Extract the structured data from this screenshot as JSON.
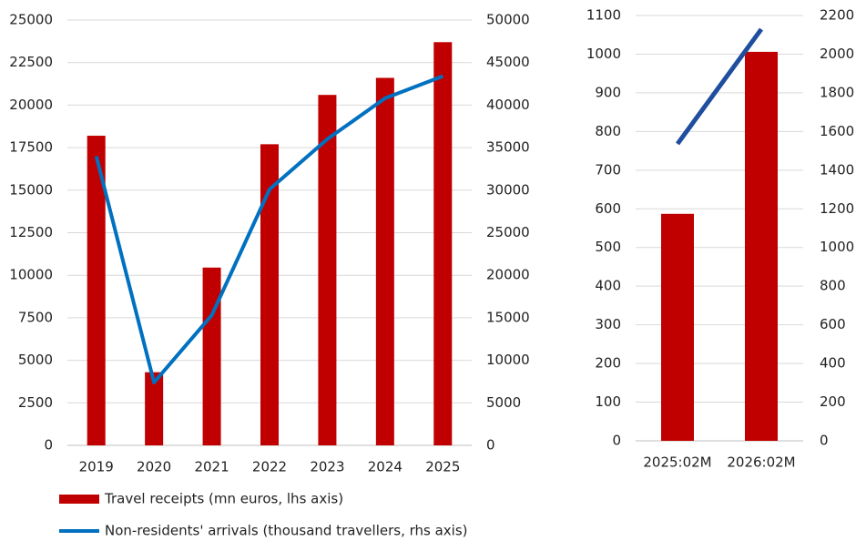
{
  "chart_data": [
    {
      "type": "bar_line",
      "categories": [
        "2019",
        "2020",
        "2021",
        "2022",
        "2023",
        "2024",
        "2025"
      ],
      "series": [
        {
          "name": "Travel receipts (mn euros, lhs axis)",
          "type": "bar",
          "color": "#c00000",
          "values": [
            18200,
            4300,
            10450,
            17700,
            20600,
            21600,
            23700
          ]
        },
        {
          "name": "Non-residents' arrivals (thousand travellers, rhs axis)",
          "type": "line",
          "axis": "y2",
          "color": "#0070c0",
          "values": [
            34000,
            7400,
            15300,
            30100,
            36000,
            40800,
            43400
          ]
        }
      ],
      "ylim": [
        0,
        25000
      ],
      "yticks": [
        0,
        2500,
        5000,
        7500,
        10000,
        12500,
        15000,
        17500,
        20000,
        22500,
        25000
      ],
      "y2lim": [
        0,
        50000
      ],
      "y2ticks": [
        0,
        5000,
        10000,
        15000,
        20000,
        25000,
        30000,
        35000,
        40000,
        45000,
        50000
      ],
      "grid": true,
      "legend": "bottom"
    },
    {
      "type": "bar_line",
      "categories": [
        "2025:02M",
        "2026:02M"
      ],
      "series": [
        {
          "type": "bar",
          "color": "#c00000",
          "values": [
            587,
            1006
          ]
        },
        {
          "type": "line",
          "axis": "y2",
          "color": "#1f4e9f",
          "values": [
            1536,
            2129
          ]
        }
      ],
      "ylim": [
        0,
        1100
      ],
      "yticks": [
        0,
        100,
        200,
        300,
        400,
        500,
        600,
        700,
        800,
        900,
        1000,
        1100
      ],
      "y2lim": [
        0,
        2200
      ],
      "y2ticks": [
        0,
        200,
        400,
        600,
        800,
        1000,
        1200,
        1400,
        1600,
        1800,
        2000,
        2200
      ],
      "grid": true
    }
  ]
}
